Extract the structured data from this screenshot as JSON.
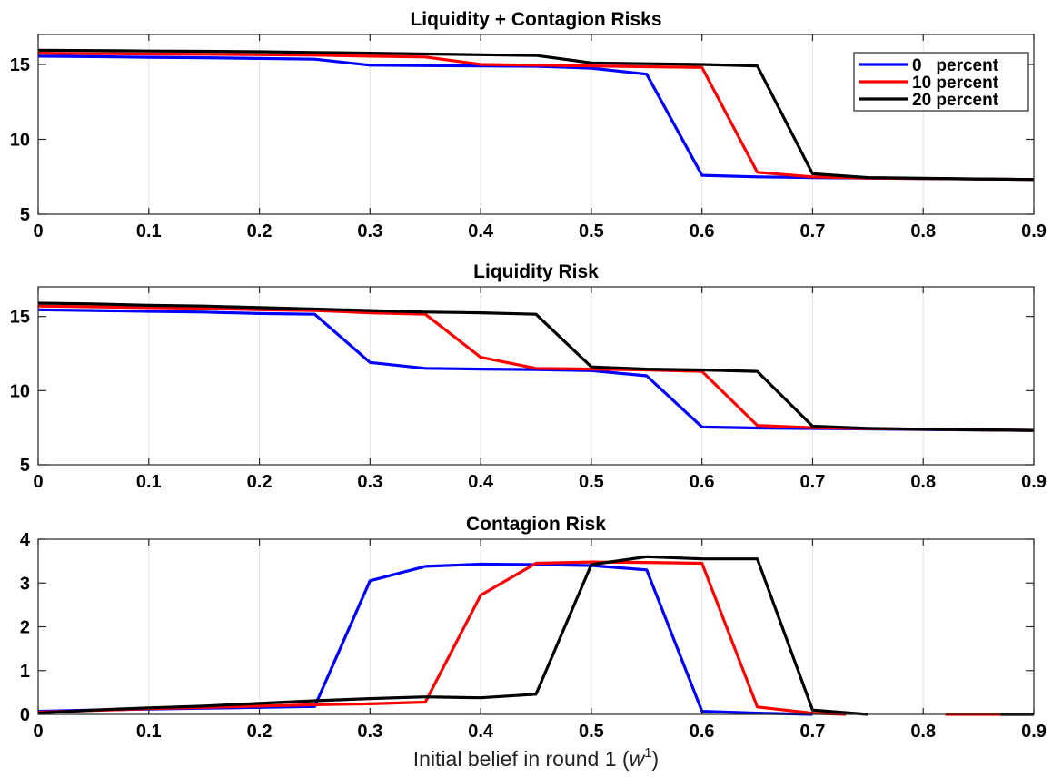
{
  "chart_data": [
    {
      "type": "line",
      "title": "Liquidity + Contagion Risks",
      "xlabel": "",
      "ylabel": "",
      "xlim": [
        0,
        0.9
      ],
      "ylim": [
        5,
        17
      ],
      "xticks": [
        "0",
        "0.1",
        "0.2",
        "0.3",
        "0.4",
        "0.5",
        "0.6",
        "0.7",
        "0.8",
        "0.9"
      ],
      "yticks": [
        "5",
        "10",
        "15"
      ],
      "grid": "vertical",
      "legend": {
        "placement": "top-right",
        "entries": [
          "0   percent",
          "10 percent",
          "20 percent"
        ]
      },
      "series": [
        {
          "name": "0   percent",
          "color": "#0000ff",
          "x": [
            0,
            0.05,
            0.1,
            0.15,
            0.2,
            0.25,
            0.3,
            0.35,
            0.4,
            0.45,
            0.5,
            0.55,
            0.6,
            0.65,
            0.7,
            0.75,
            0.8,
            0.85,
            0.9
          ],
          "y": [
            15.55,
            15.52,
            15.48,
            15.45,
            15.4,
            15.35,
            14.95,
            14.92,
            14.9,
            14.88,
            14.75,
            14.35,
            7.6,
            7.5,
            7.45,
            7.42,
            7.38,
            7.35,
            7.32
          ]
        },
        {
          "name": "10 percent",
          "color": "#ff0000",
          "x": [
            0,
            0.05,
            0.1,
            0.15,
            0.2,
            0.25,
            0.3,
            0.35,
            0.4,
            0.45,
            0.5,
            0.55,
            0.6,
            0.65,
            0.7,
            0.75,
            0.8,
            0.85,
            0.9
          ],
          "y": [
            15.75,
            15.72,
            15.7,
            15.68,
            15.65,
            15.62,
            15.55,
            15.5,
            15.0,
            14.95,
            14.9,
            14.85,
            14.8,
            7.8,
            7.5,
            7.42,
            7.38,
            7.35,
            7.32
          ]
        },
        {
          "name": "20 percent",
          "color": "#000000",
          "x": [
            0,
            0.05,
            0.1,
            0.15,
            0.2,
            0.25,
            0.3,
            0.35,
            0.4,
            0.45,
            0.5,
            0.55,
            0.6,
            0.65,
            0.7,
            0.75,
            0.8,
            0.85,
            0.9
          ],
          "y": [
            15.95,
            15.93,
            15.9,
            15.88,
            15.85,
            15.8,
            15.75,
            15.7,
            15.65,
            15.6,
            15.1,
            15.05,
            15.0,
            14.9,
            7.7,
            7.45,
            7.4,
            7.36,
            7.32
          ]
        }
      ]
    },
    {
      "type": "line",
      "title": "Liquidity Risk",
      "xlabel": "",
      "ylabel": "",
      "xlim": [
        0,
        0.9
      ],
      "ylim": [
        5,
        17
      ],
      "xticks": [
        "0",
        "0.1",
        "0.2",
        "0.3",
        "0.4",
        "0.5",
        "0.6",
        "0.7",
        "0.8",
        "0.9"
      ],
      "yticks": [
        "5",
        "10",
        "15"
      ],
      "grid": "vertical",
      "series": [
        {
          "name": "0   percent",
          "color": "#0000ff",
          "x": [
            0,
            0.05,
            0.1,
            0.15,
            0.2,
            0.25,
            0.3,
            0.35,
            0.4,
            0.45,
            0.5,
            0.55,
            0.6,
            0.65,
            0.7,
            0.75,
            0.8,
            0.85,
            0.9
          ],
          "y": [
            15.45,
            15.4,
            15.35,
            15.3,
            15.2,
            15.15,
            11.9,
            11.5,
            11.45,
            11.42,
            11.35,
            11.0,
            7.55,
            7.48,
            7.45,
            7.42,
            7.38,
            7.35,
            7.32
          ]
        },
        {
          "name": "10 percent",
          "color": "#ff0000",
          "x": [
            0,
            0.05,
            0.1,
            0.15,
            0.2,
            0.25,
            0.3,
            0.35,
            0.4,
            0.45,
            0.5,
            0.55,
            0.6,
            0.65,
            0.7,
            0.75,
            0.8,
            0.85,
            0.9
          ],
          "y": [
            15.7,
            15.65,
            15.6,
            15.55,
            15.45,
            15.4,
            15.25,
            15.15,
            12.25,
            11.5,
            11.45,
            11.4,
            11.3,
            7.65,
            7.5,
            7.44,
            7.4,
            7.36,
            7.32
          ]
        },
        {
          "name": "20 percent",
          "color": "#000000",
          "x": [
            0,
            0.05,
            0.1,
            0.15,
            0.2,
            0.25,
            0.3,
            0.35,
            0.4,
            0.45,
            0.5,
            0.55,
            0.6,
            0.65,
            0.7,
            0.75,
            0.8,
            0.85,
            0.9
          ],
          "y": [
            15.9,
            15.85,
            15.75,
            15.7,
            15.6,
            15.5,
            15.4,
            15.3,
            15.25,
            15.15,
            11.6,
            11.45,
            11.4,
            11.3,
            7.6,
            7.46,
            7.4,
            7.36,
            7.32
          ]
        }
      ]
    },
    {
      "type": "line",
      "title": "Contagion Risk",
      "xlabel": "Initial belief in round 1 (",
      "xlabel_var": "w",
      "xlabel_sup": "1",
      "xlabel_end": ")",
      "ylabel": "",
      "xlim": [
        0,
        0.9
      ],
      "ylim": [
        0,
        4
      ],
      "xticks": [
        "0",
        "0.1",
        "0.2",
        "0.3",
        "0.4",
        "0.5",
        "0.6",
        "0.7",
        "0.8",
        "0.9"
      ],
      "yticks": [
        "0",
        "1",
        "2",
        "3",
        "4"
      ],
      "grid": "vertical",
      "series": [
        {
          "name": "0   percent",
          "color": "#0000ff",
          "segments": [
            {
              "x": [
                0,
                0.05,
                0.1,
                0.15,
                0.2,
                0.25,
                0.3,
                0.35,
                0.4,
                0.45,
                0.5,
                0.55,
                0.6,
                0.65,
                0.7
              ],
              "y": [
                0.07,
                0.1,
                0.12,
                0.14,
                0.16,
                0.18,
                3.05,
                3.38,
                3.43,
                3.42,
                3.4,
                3.3,
                0.07,
                0.03,
                0.0
              ]
            }
          ]
        },
        {
          "name": "10 percent",
          "color": "#ff0000",
          "segments": [
            {
              "x": [
                0,
                0.05,
                0.1,
                0.15,
                0.2,
                0.25,
                0.3,
                0.35,
                0.4,
                0.45,
                0.5,
                0.55,
                0.6,
                0.65,
                0.7,
                0.73
              ],
              "y": [
                0.05,
                0.09,
                0.13,
                0.16,
                0.19,
                0.22,
                0.24,
                0.28,
                2.72,
                3.45,
                3.48,
                3.47,
                3.45,
                0.17,
                0.03,
                0.0
              ]
            },
            {
              "x": [
                0.82,
                0.87
              ],
              "y": [
                0.0,
                0.0
              ]
            }
          ]
        },
        {
          "name": "20 percent",
          "color": "#000000",
          "segments": [
            {
              "x": [
                0,
                0.05,
                0.1,
                0.15,
                0.2,
                0.25,
                0.3,
                0.35,
                0.4,
                0.45,
                0.5,
                0.55,
                0.6,
                0.65,
                0.7,
                0.75
              ],
              "y": [
                0.03,
                0.1,
                0.15,
                0.19,
                0.25,
                0.31,
                0.36,
                0.4,
                0.38,
                0.46,
                3.42,
                3.6,
                3.55,
                3.55,
                0.1,
                0.0
              ]
            },
            {
              "x": [
                0.87,
                0.9
              ],
              "y": [
                0.0,
                0.0
              ]
            }
          ]
        }
      ]
    }
  ]
}
